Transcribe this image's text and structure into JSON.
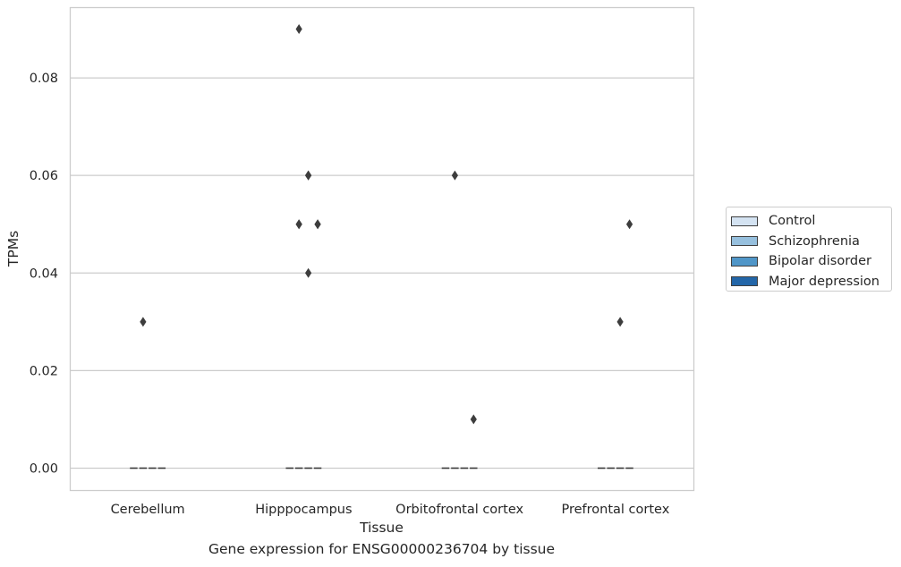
{
  "chart_data": {
    "type": "box",
    "categories": [
      "Cerebellum",
      "Hipppocampus",
      "Orbitofrontal cortex",
      "Prefrontal cortex"
    ],
    "xlabel": "Tissue",
    "ylabel": "TPMs",
    "caption": "Gene expression for ENSG00000236704 by tissue",
    "ylim": [
      -0.0045,
      0.0945
    ],
    "yticks": [
      "0.00",
      "0.02",
      "0.04",
      "0.06",
      "0.08"
    ],
    "grid": true,
    "legend_position": "right",
    "series": [
      {
        "name": "Control",
        "color": "#d4e3f2",
        "median": [
          0,
          0,
          0,
          0
        ],
        "outliers": [
          [],
          [],
          [],
          []
        ]
      },
      {
        "name": "Schizophrenia",
        "color": "#97c0de",
        "median": [
          0,
          0,
          0,
          0
        ],
        "outliers": [
          [
            0.03
          ],
          [
            0.05,
            0.09,
            0.05
          ],
          [
            0.06
          ],
          []
        ]
      },
      {
        "name": "Bipolar disorder",
        "color": "#5096c8",
        "median": [
          0,
          0,
          0,
          0
        ],
        "outliers": [
          [],
          [
            0.06,
            0.06,
            0.04
          ],
          [],
          [
            0.03
          ]
        ]
      },
      {
        "name": "Major depression",
        "color": "#2366a8",
        "median": [
          0,
          0,
          0,
          0
        ],
        "outliers": [
          [],
          [
            0.05,
            0.05
          ],
          [
            0.01
          ],
          [
            0.05
          ]
        ]
      }
    ]
  }
}
